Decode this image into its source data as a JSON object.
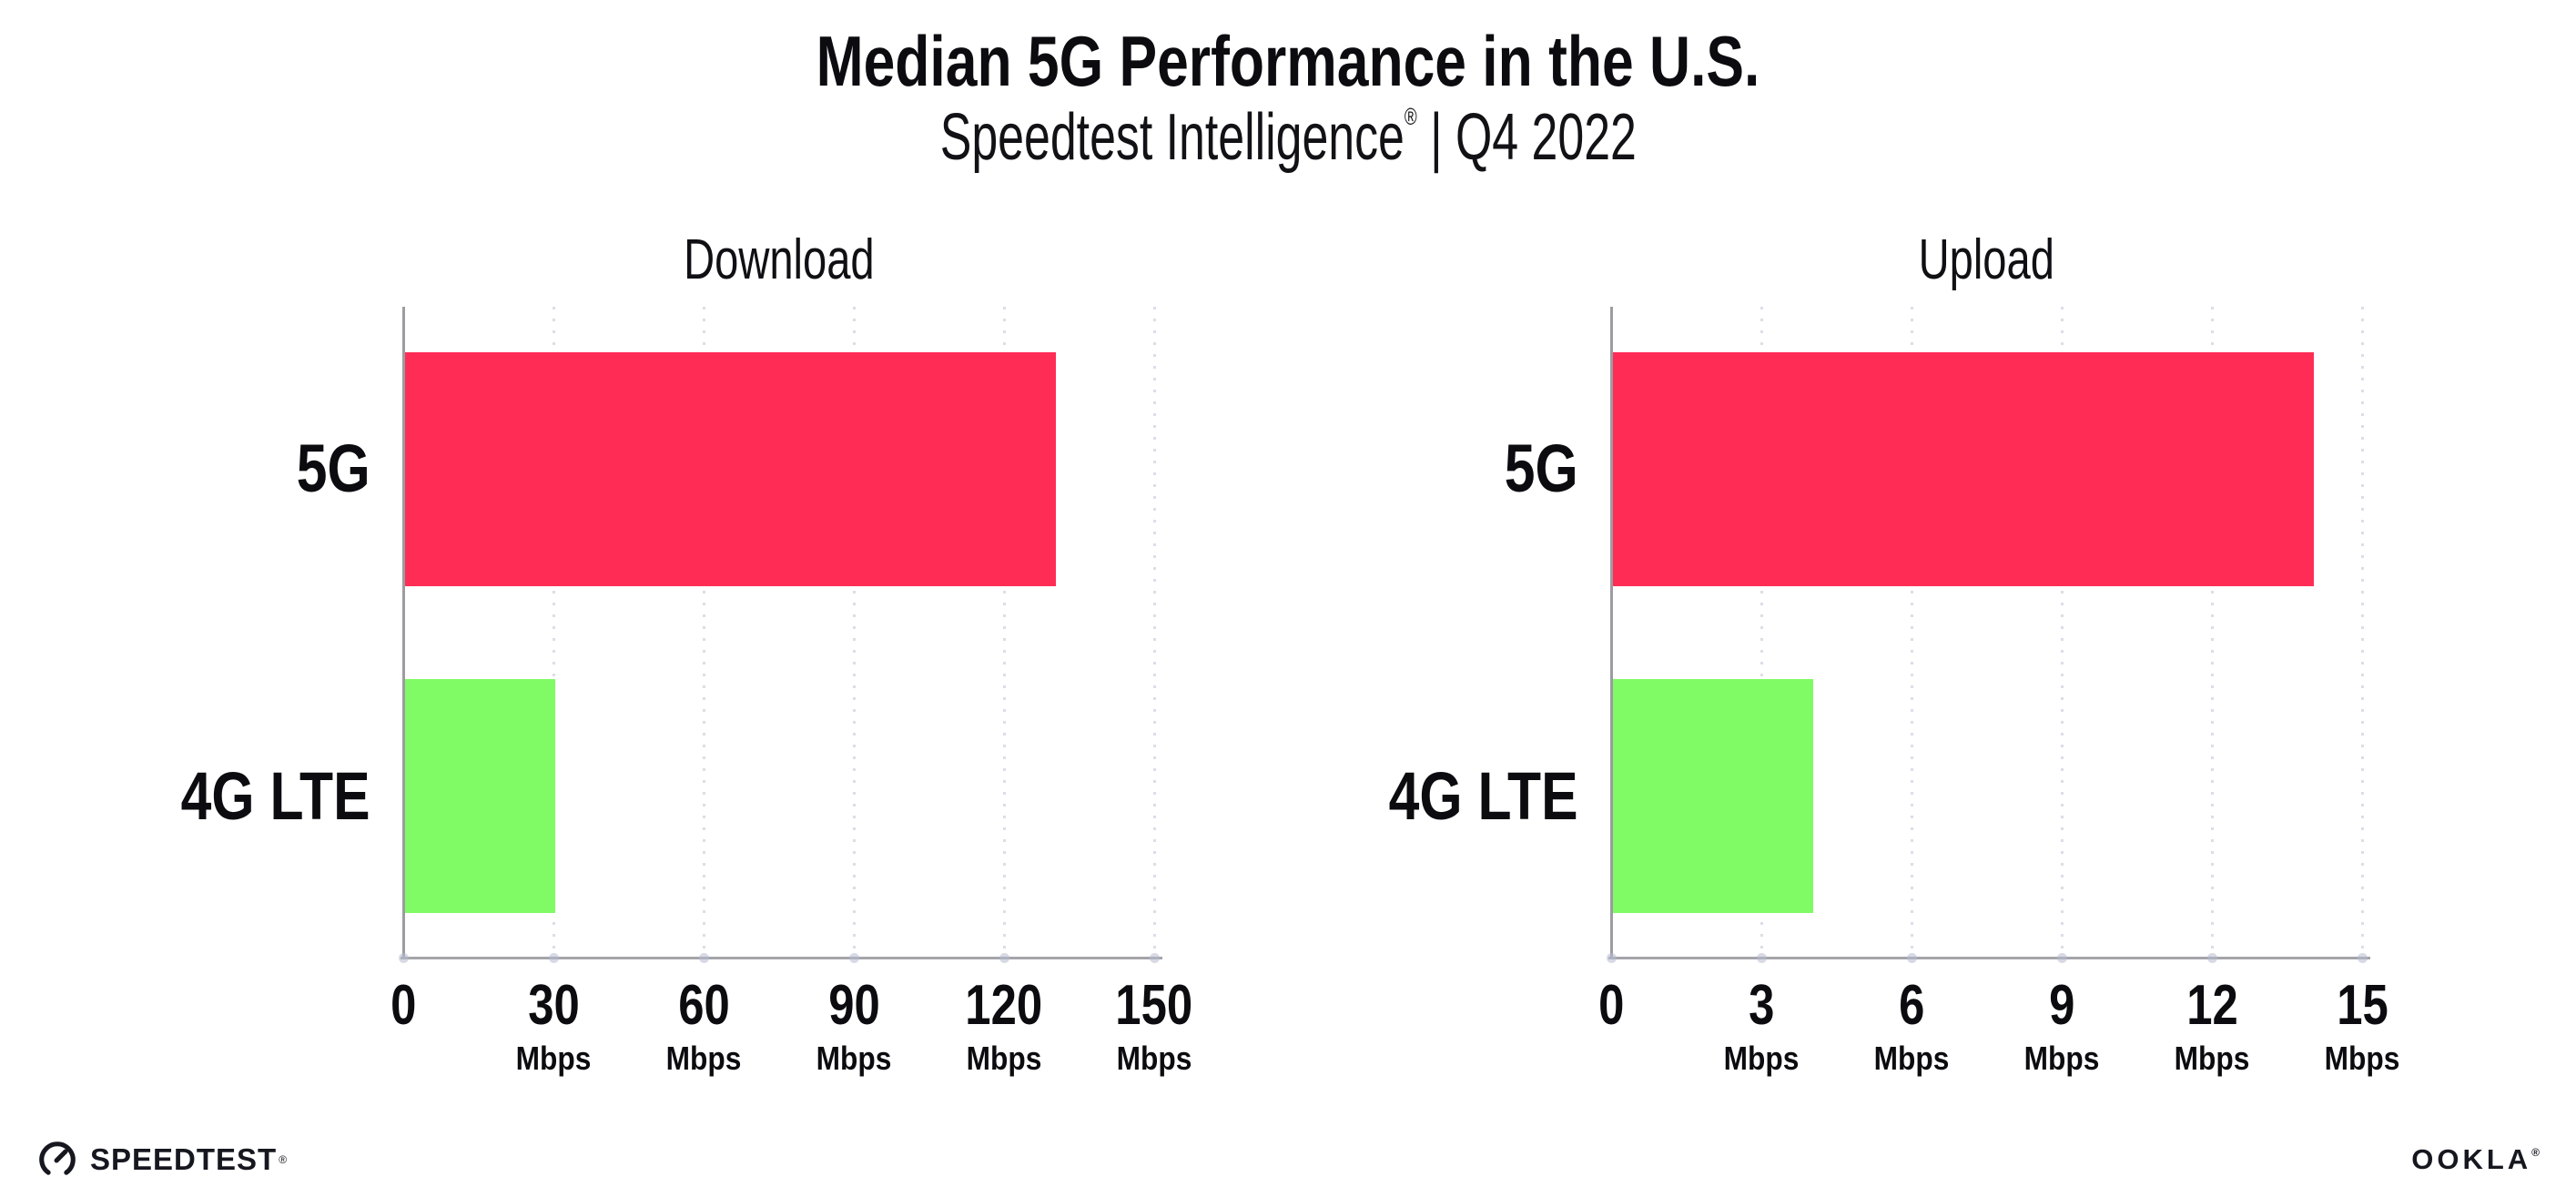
{
  "page": {
    "title": "Median 5G Performance in the U.S.",
    "subtitle_brand": "Speedtest Intelligence",
    "subtitle_reg": "®",
    "subtitle_rest": " | Q4 2022"
  },
  "chart_data": [
    {
      "type": "bar",
      "orientation": "horizontal",
      "title": "Download",
      "categories": [
        "5G",
        "4G LTE"
      ],
      "values": [
        130,
        30
      ],
      "unit": "Mbps",
      "xlim": [
        0,
        150
      ],
      "ticks": [
        0,
        30,
        60,
        90,
        120,
        150
      ],
      "tick_unit_label": "Mbps",
      "grid": "dotted-vertical",
      "legend": "none",
      "bar_colors": [
        "#ff2d55",
        "#80fb66"
      ]
    },
    {
      "type": "bar",
      "orientation": "horizontal",
      "title": "Upload",
      "categories": [
        "5G",
        "4G LTE"
      ],
      "values": [
        14,
        4
      ],
      "unit": "Mbps",
      "xlim": [
        0,
        15
      ],
      "ticks": [
        0,
        3,
        6,
        9,
        12,
        15
      ],
      "tick_unit_label": "Mbps",
      "grid": "dotted-vertical",
      "legend": "none",
      "bar_colors": [
        "#ff2d55",
        "#80fb66"
      ]
    }
  ],
  "colors": {
    "bar_5g": "#ff2d55",
    "bar_4g_lte": "#80fb66",
    "axis": "#9c9ca1",
    "baseline": "#a4a4aa",
    "gridline": "#dcdde8",
    "tick_dot": "rgba(182,188,208,0.55)",
    "text": "#0c0c10",
    "logo": "#16171f"
  },
  "footer": {
    "speedtest_label": "SPEEDTEST",
    "speedtest_reg": "®",
    "speedtest_icon": "gauge-icon",
    "ookla_label": "OOKLA",
    "ookla_reg": "®"
  }
}
